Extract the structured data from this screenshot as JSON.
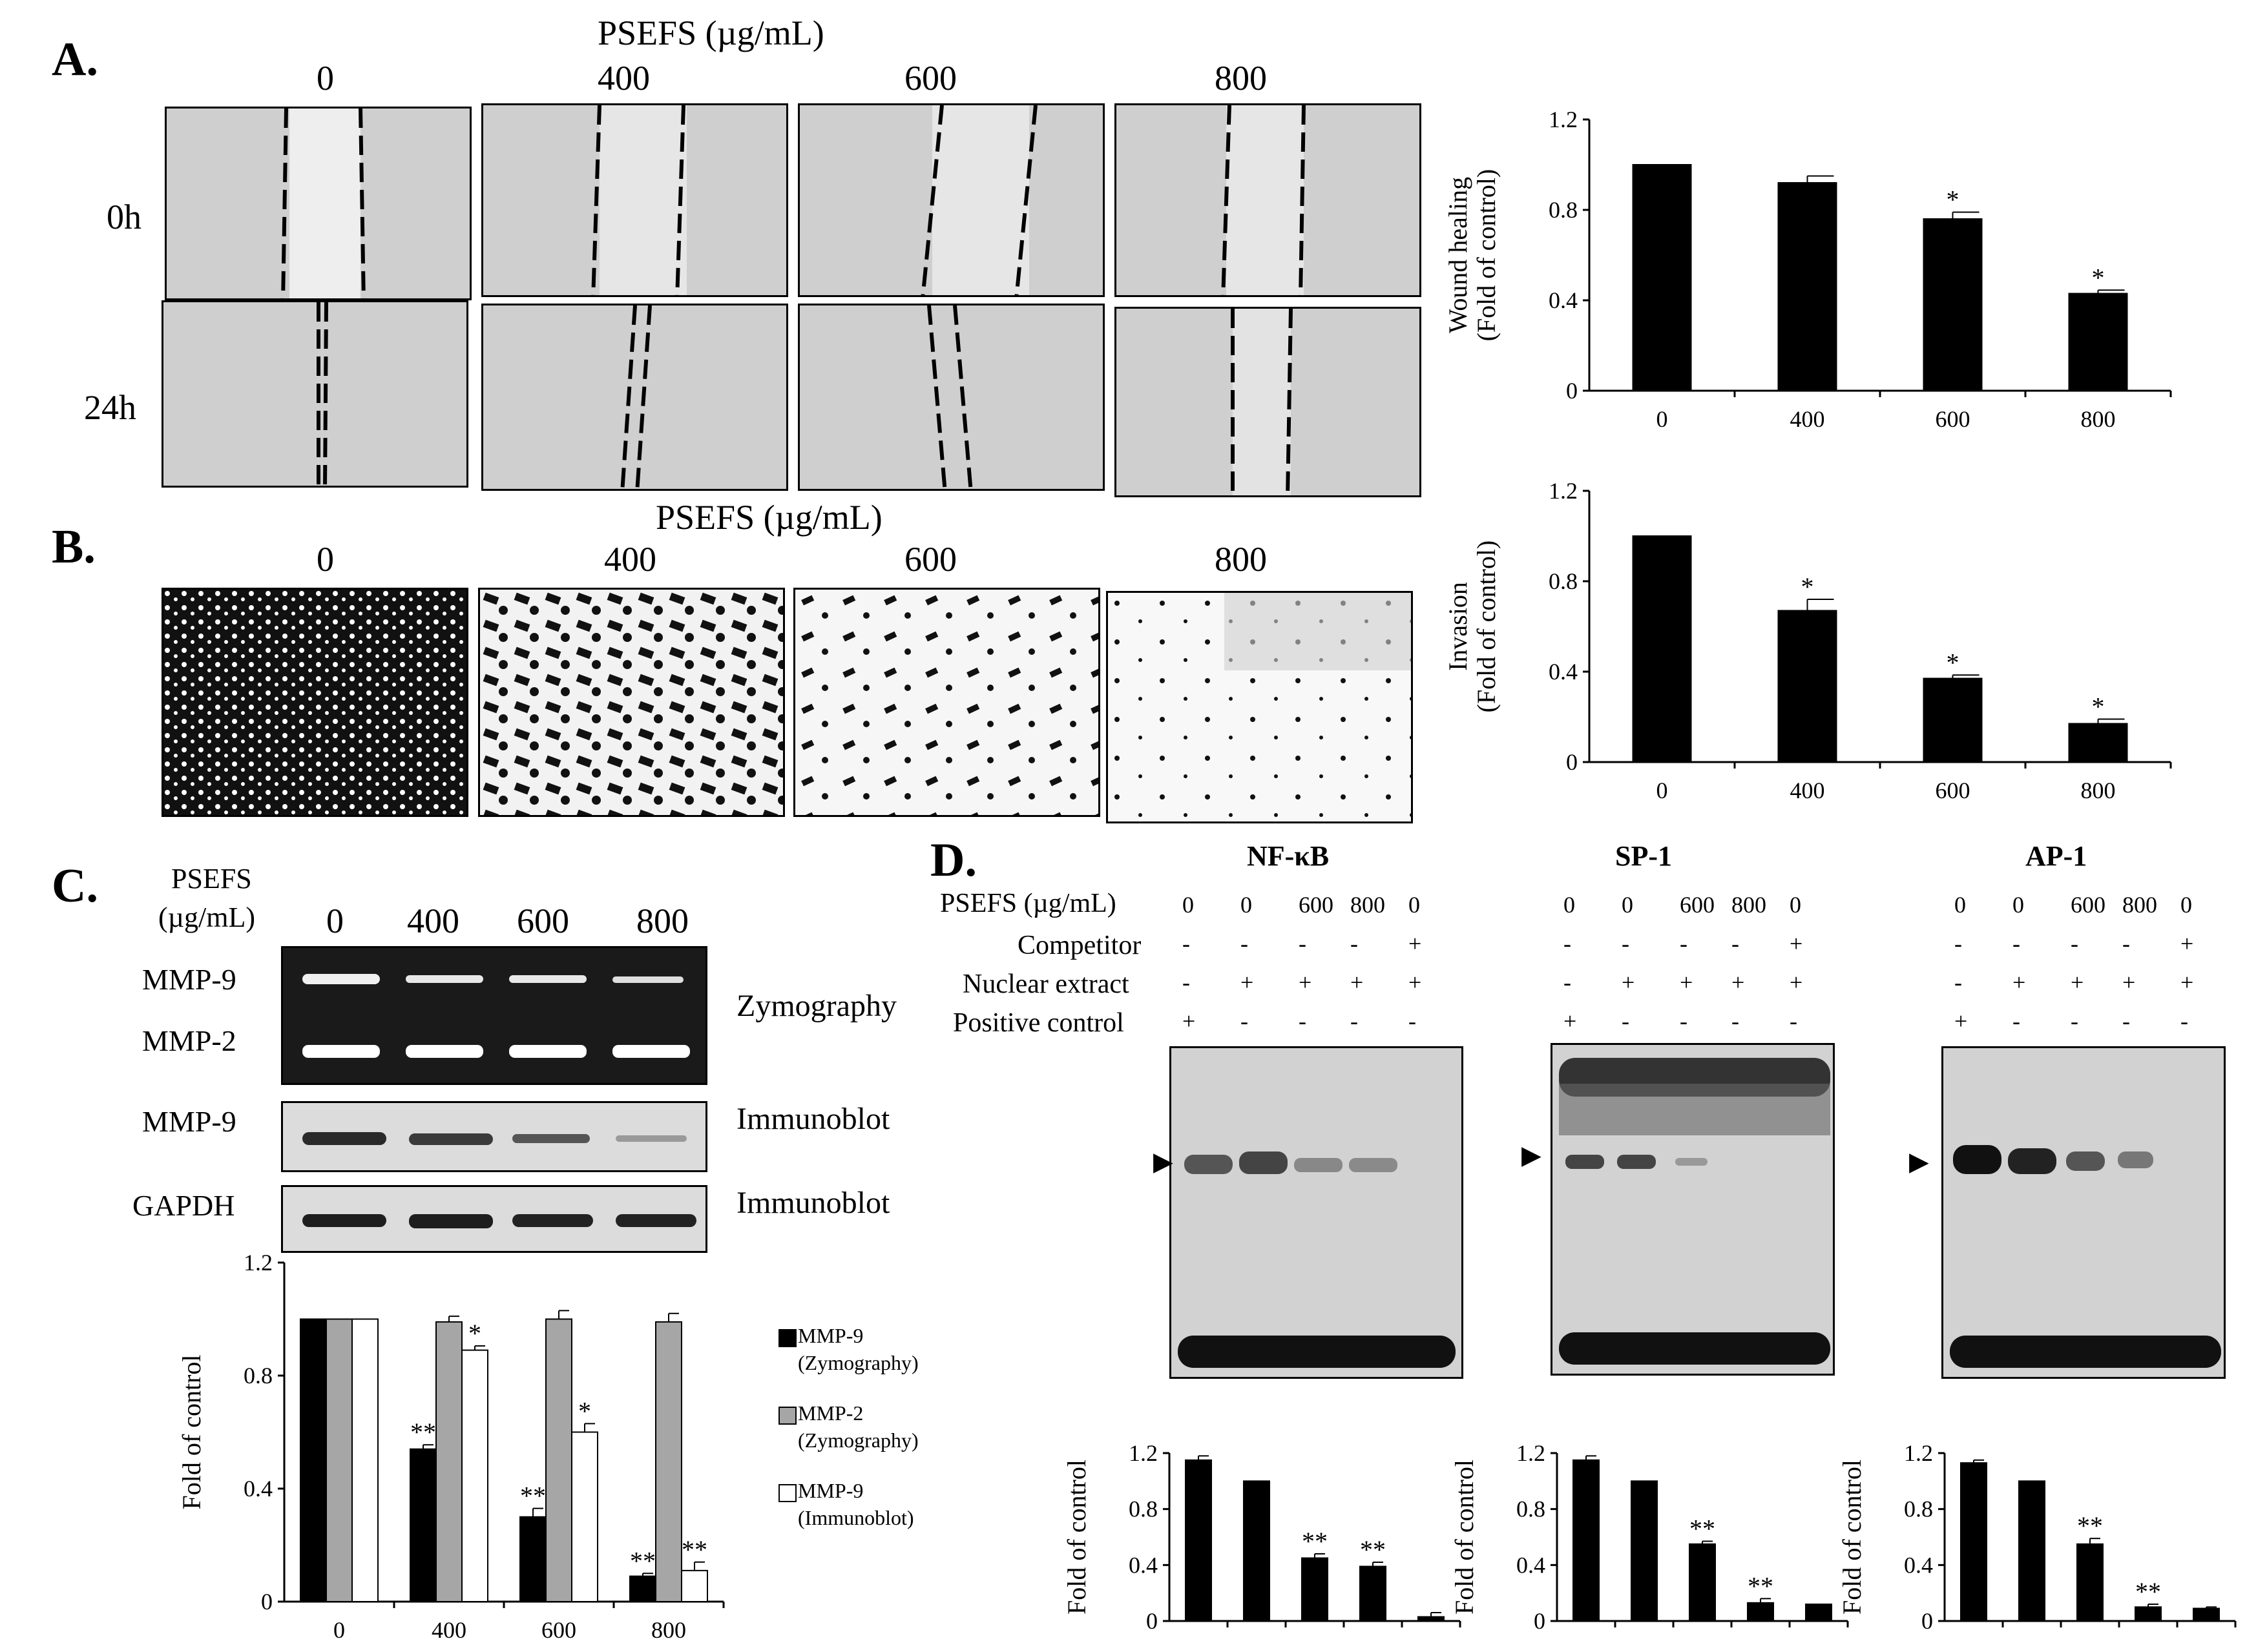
{
  "panel_labels": [
    "A.",
    "B.",
    "C.",
    "D."
  ],
  "panel_a": {
    "treatment_title": "PSEFS (µg/mL)",
    "doses": [
      "0",
      "400",
      "600",
      "800"
    ],
    "time_labels": [
      "0h",
      "24h"
    ]
  },
  "panel_b": {
    "treatment_title": "PSEFS (µg/mL)",
    "doses": [
      "0",
      "400",
      "600",
      "800"
    ]
  },
  "panel_c": {
    "treatment_title_line1": "PSEFS",
    "treatment_title_line2": "(µg/mL)",
    "doses": [
      "0",
      "400",
      "600",
      "800"
    ],
    "band_labels": {
      "mmp9": "MMP-9",
      "mmp2": "MMP-2",
      "mmp9_blot": "MMP-9",
      "gapdh": "GAPDH"
    },
    "method_labels": {
      "zymography": "Zymography",
      "immunoblot1": "Immunoblot",
      "immunoblot2": "Immunoblot"
    },
    "legend": [
      {
        "line1": "MMP-9",
        "line2": "(Zymography)",
        "color": "#000000"
      },
      {
        "line1": "MMP-2",
        "line2": "(Zymography)",
        "color": "#a6a6a6"
      },
      {
        "line1": "MMP-9",
        "line2": "(Immunoblot)",
        "color": "#ffffff"
      }
    ]
  },
  "panel_d": {
    "row_labels": [
      "PSEFS (µg/mL)",
      "Competitor",
      "Nuclear extract",
      "Positive control"
    ],
    "gels": [
      {
        "title": "NF-κB",
        "doses": [
          "0",
          "0",
          "600",
          "800",
          "0"
        ]
      },
      {
        "title": "SP-1",
        "doses": [
          "0",
          "0",
          "600",
          "800",
          "0"
        ]
      },
      {
        "title": "AP-1",
        "doses": [
          "0",
          "0",
          "600",
          "800",
          "0"
        ]
      }
    ],
    "competitor": [
      "-",
      "-",
      "-",
      "-",
      "+"
    ],
    "nuclear_extract": [
      "-",
      "+",
      "+",
      "+",
      "+"
    ],
    "positive_control": [
      "+",
      "-",
      "-",
      "-",
      "-"
    ],
    "arrow": "▶"
  },
  "chart_data": [
    {
      "type": "bar",
      "ylabel_line1": "Wound healing",
      "ylabel_line2": "(Fold of control)",
      "categories": [
        "0",
        "400",
        "600",
        "800"
      ],
      "values": [
        1.0,
        0.92,
        0.76,
        0.43
      ],
      "errors": [
        0.0,
        0.03,
        0.03,
        0.015
      ],
      "significance": [
        "",
        "",
        "*",
        "*"
      ],
      "yticks": [
        "0",
        "0.4",
        "0.8",
        "1.2"
      ],
      "ylim": [
        0,
        1.2
      ]
    },
    {
      "type": "bar",
      "ylabel_line1": "Invasion",
      "ylabel_line2": "(Fold of control)",
      "categories": [
        "0",
        "400",
        "600",
        "800"
      ],
      "values": [
        1.0,
        0.67,
        0.37,
        0.17
      ],
      "errors": [
        0.0,
        0.05,
        0.015,
        0.02
      ],
      "significance": [
        "",
        "*",
        "*",
        "*"
      ],
      "yticks": [
        "0",
        "0.4",
        "0.8",
        "1.2"
      ],
      "ylim": [
        0,
        1.2
      ]
    },
    {
      "type": "bar",
      "ylabel": "Fold of control",
      "categories": [
        "0",
        "400",
        "600",
        "800"
      ],
      "series": [
        {
          "name": "MMP-9 (Zymography)",
          "values": [
            1.0,
            0.54,
            0.3,
            0.09
          ],
          "errors": [
            0,
            0.015,
            0.03,
            0.01
          ],
          "significance": [
            "",
            "**",
            "**",
            "**"
          ]
        },
        {
          "name": "MMP-2 (Zymography)",
          "values": [
            1.0,
            0.99,
            1.0,
            0.99
          ],
          "errors": [
            0,
            0.02,
            0.03,
            0.03
          ],
          "significance": [
            "",
            "",
            "",
            ""
          ]
        },
        {
          "name": "MMP-9 (Immunoblot)",
          "values": [
            1.0,
            0.89,
            0.6,
            0.11
          ],
          "errors": [
            0,
            0.015,
            0.03,
            0.03
          ],
          "significance": [
            "",
            "*",
            "*",
            "**"
          ]
        }
      ],
      "yticks": [
        "0",
        "0.4",
        "0.8",
        "1.2"
      ],
      "ylim": [
        0,
        1.2
      ]
    },
    {
      "type": "bar",
      "title": "NF-κB",
      "ylabel": "Fold of control",
      "values": [
        1.15,
        1.0,
        0.45,
        0.39,
        0.03
      ],
      "errors": [
        0.03,
        0.0,
        0.03,
        0.03,
        0.03
      ],
      "significance": [
        "",
        "",
        "**",
        "**",
        ""
      ],
      "yticks": [
        "0",
        "0.4",
        "0.8",
        "1.2"
      ],
      "ylim": [
        0,
        1.2
      ]
    },
    {
      "type": "bar",
      "title": "SP-1",
      "ylabel": "Fold of control",
      "values": [
        1.15,
        1.0,
        0.55,
        0.13,
        0.12
      ],
      "errors": [
        0.03,
        0.0,
        0.02,
        0.03,
        0.0
      ],
      "significance": [
        "",
        "",
        "**",
        "**",
        ""
      ],
      "yticks": [
        "0",
        "0.4",
        "0.8",
        "1.2"
      ],
      "ylim": [
        0,
        1.2
      ]
    },
    {
      "type": "bar",
      "title": "AP-1",
      "ylabel": "Fold of control",
      "values": [
        1.13,
        1.0,
        0.55,
        0.1,
        0.09
      ],
      "errors": [
        0.02,
        0.0,
        0.04,
        0.02,
        0.01
      ],
      "significance": [
        "",
        "",
        "**",
        "**",
        ""
      ],
      "yticks": [
        "0",
        "0.4",
        "0.8",
        "1.2"
      ],
      "ylim": [
        0,
        1.2
      ]
    }
  ]
}
